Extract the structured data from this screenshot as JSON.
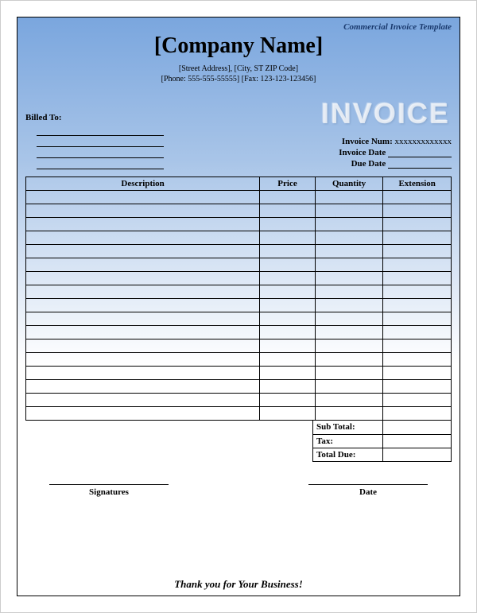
{
  "template_label": "Commercial Invoice Template",
  "company_name": "[Company Name]",
  "address_line1": "[Street Address], [City, ST ZIP Code]",
  "address_line2": "[Phone: 555-555-55555] [Fax: 123-123-123456]",
  "watermark": "INVOICE",
  "billed_to_label": "Billed To:",
  "billed_to_line_count": 4,
  "invoice_meta": {
    "num_label": "Invoice Num:",
    "num_value": "xxxxxxxxxxxxx",
    "date_label": "Invoice Date",
    "due_label": "Due Date"
  },
  "table": {
    "columns": [
      "Description",
      "Price",
      "Quantity",
      "Extension"
    ],
    "row_count": 17,
    "column_widths_pct": [
      55,
      13,
      16,
      16
    ]
  },
  "totals": {
    "subtotal_label": "Sub Total:",
    "tax_label": "Tax:",
    "total_due_label": "Total Due:"
  },
  "signatures_label": "Signatures",
  "date_label": "Date",
  "thank_you": "Thank you for Your Business!",
  "styling": {
    "gradient_top": "#7aa6de",
    "gradient_mid": "#d0dff2",
    "gradient_bottom": "#ffffff",
    "border_color": "#000000",
    "company_name_fontsize": 28,
    "watermark_fontsize": 36,
    "body_fontsize": 11
  }
}
